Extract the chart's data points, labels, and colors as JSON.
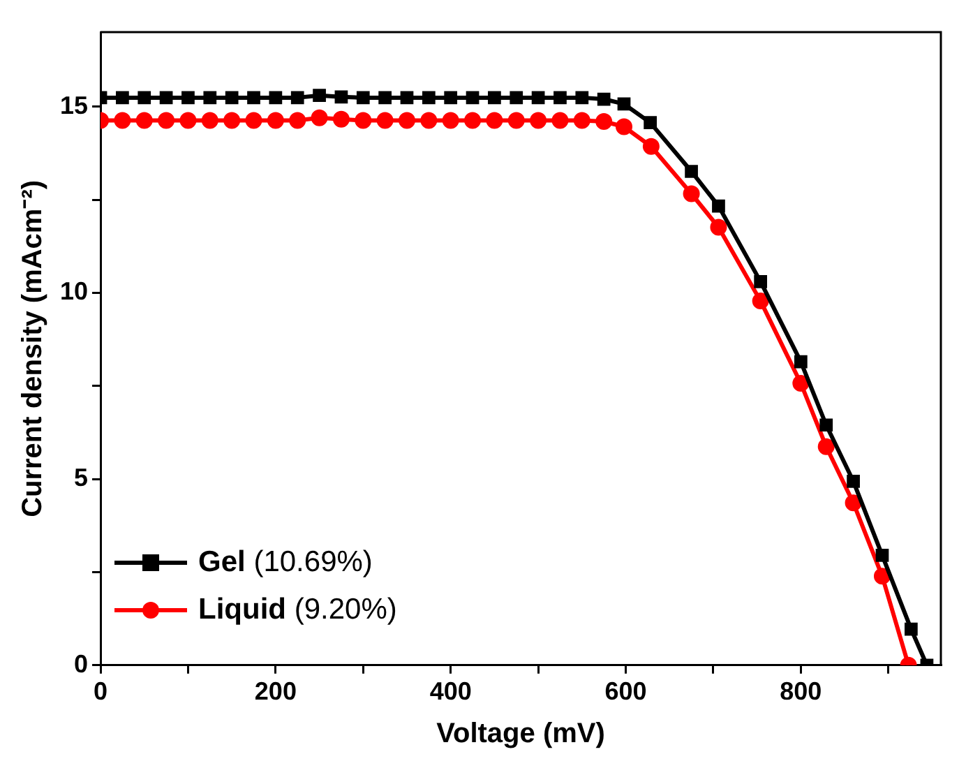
{
  "chart_data": {
    "type": "line",
    "xlabel": "Voltage (mV)",
    "ylabel": "Current density (mAcm⁻²)",
    "xlim": [
      0,
      960
    ],
    "ylim": [
      0,
      17
    ],
    "xticks": [
      0,
      {
        "value": 100,
        "label": null
      },
      200,
      {
        "value": 300,
        "label": null
      },
      400,
      {
        "value": 500,
        "label": null
      },
      600,
      {
        "value": 700,
        "label": null
      },
      800,
      {
        "value": 900,
        "label": null
      }
    ],
    "yticks": [
      0,
      {
        "value": 2.5,
        "label": null
      },
      5,
      {
        "value": 7.5,
        "label": null
      },
      10,
      {
        "value": 12.5,
        "label": null
      },
      15
    ],
    "grid": false,
    "legend": "bottom left",
    "marker": "square",
    "line_style": "solid",
    "series": [
      {
        "name": "Gel (10.69%)",
        "color": "#000000",
        "x": [
          0,
          25,
          50,
          75,
          100,
          125,
          150,
          175,
          200,
          225,
          250,
          275,
          300,
          325,
          350,
          375,
          400,
          425,
          450,
          475,
          500,
          525,
          550,
          575,
          598,
          628,
          675,
          706,
          754,
          800,
          829,
          860,
          893,
          926,
          944
        ],
        "values": [
          15.24,
          15.24,
          15.24,
          15.24,
          15.24,
          15.24,
          15.24,
          15.24,
          15.24,
          15.24,
          15.3,
          15.26,
          15.24,
          15.24,
          15.24,
          15.24,
          15.24,
          15.24,
          15.24,
          15.24,
          15.24,
          15.24,
          15.24,
          15.2,
          15.07,
          14.57,
          13.26,
          12.33,
          10.3,
          8.15,
          6.45,
          4.94,
          2.95,
          0.97,
          0
        ]
      },
      {
        "name": "Liquid (9.20%)",
        "color": "#ff0000",
        "marker": "circle",
        "x": [
          0,
          25,
          50,
          75,
          100,
          125,
          150,
          175,
          200,
          225,
          250,
          275,
          300,
          325,
          350,
          375,
          400,
          425,
          450,
          475,
          500,
          525,
          550,
          575,
          598,
          629,
          675,
          706,
          754,
          800,
          829,
          860,
          893,
          923
        ],
        "values": [
          14.63,
          14.63,
          14.63,
          14.63,
          14.63,
          14.63,
          14.63,
          14.63,
          14.63,
          14.63,
          14.7,
          14.66,
          14.63,
          14.63,
          14.63,
          14.63,
          14.63,
          14.63,
          14.63,
          14.63,
          14.63,
          14.63,
          14.63,
          14.6,
          14.46,
          13.93,
          12.66,
          11.76,
          9.78,
          7.57,
          5.87,
          4.36,
          2.39,
          0
        ]
      }
    ]
  }
}
